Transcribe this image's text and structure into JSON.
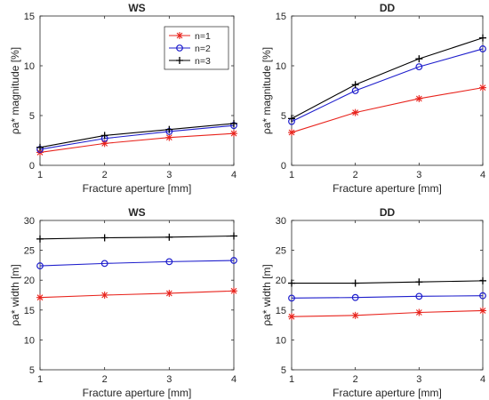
{
  "figure": {
    "background": "#ffffff"
  },
  "legend": {
    "placement": "top-right of first panel",
    "entries": [
      {
        "label": "n=1",
        "color": "#e8231c",
        "marker": "asterisk"
      },
      {
        "label": "n=2",
        "color": "#1d1dcc",
        "marker": "circle"
      },
      {
        "label": "n=3",
        "color": "#000000",
        "marker": "plus"
      }
    ]
  },
  "chart_data": [
    {
      "type": "line",
      "title": "WS",
      "xlabel": "Fracture aperture [mm]",
      "ylabel": "ρa* magnitude [%]",
      "xlim": [
        1,
        4
      ],
      "ylim": [
        0,
        15
      ],
      "xticks": [
        1,
        2,
        3,
        4
      ],
      "yticks": [
        0,
        5,
        10,
        15
      ],
      "grid": false,
      "x": [
        1,
        2,
        3,
        4
      ],
      "series": [
        {
          "name": "n=1",
          "values": [
            1.3,
            2.2,
            2.8,
            3.2
          ]
        },
        {
          "name": "n=2",
          "values": [
            1.6,
            2.7,
            3.4,
            4.0
          ]
        },
        {
          "name": "n=3",
          "values": [
            1.8,
            3.0,
            3.6,
            4.2
          ]
        }
      ]
    },
    {
      "type": "line",
      "title": "DD",
      "xlabel": "Fracture aperture [mm]",
      "ylabel": "ρa* magnitude [%]",
      "xlim": [
        1,
        4
      ],
      "ylim": [
        0,
        15
      ],
      "xticks": [
        1,
        2,
        3,
        4
      ],
      "yticks": [
        0,
        5,
        10,
        15
      ],
      "grid": false,
      "x": [
        1,
        2,
        3,
        4
      ],
      "series": [
        {
          "name": "n=1",
          "values": [
            3.3,
            5.3,
            6.7,
            7.8
          ]
        },
        {
          "name": "n=2",
          "values": [
            4.4,
            7.5,
            9.9,
            11.7
          ]
        },
        {
          "name": "n=3",
          "values": [
            4.7,
            8.1,
            10.7,
            12.8
          ]
        }
      ]
    },
    {
      "type": "line",
      "title": "WS",
      "xlabel": "Fracture aperture [mm]",
      "ylabel": "ρa* width [m]",
      "xlim": [
        1,
        4
      ],
      "ylim": [
        5,
        30
      ],
      "xticks": [
        1,
        2,
        3,
        4
      ],
      "yticks": [
        5,
        10,
        15,
        20,
        25,
        30
      ],
      "grid": false,
      "x": [
        1,
        2,
        3,
        4
      ],
      "series": [
        {
          "name": "n=1",
          "values": [
            17.1,
            17.5,
            17.8,
            18.2
          ]
        },
        {
          "name": "n=2",
          "values": [
            22.4,
            22.8,
            23.1,
            23.3
          ]
        },
        {
          "name": "n=3",
          "values": [
            26.9,
            27.1,
            27.2,
            27.4
          ]
        }
      ]
    },
    {
      "type": "line",
      "title": "DD",
      "xlabel": "Fracture aperture [mm]",
      "ylabel": "ρa* width [m]",
      "xlim": [
        1,
        4
      ],
      "ylim": [
        5,
        30
      ],
      "xticks": [
        1,
        2,
        3,
        4
      ],
      "yticks": [
        5,
        10,
        15,
        20,
        25,
        30
      ],
      "grid": false,
      "x": [
        1,
        2,
        3,
        4
      ],
      "series": [
        {
          "name": "n=1",
          "values": [
            13.9,
            14.1,
            14.6,
            14.9
          ]
        },
        {
          "name": "n=2",
          "values": [
            17.0,
            17.1,
            17.3,
            17.4
          ]
        },
        {
          "name": "n=3",
          "values": [
            19.5,
            19.5,
            19.7,
            19.9
          ]
        }
      ]
    }
  ]
}
